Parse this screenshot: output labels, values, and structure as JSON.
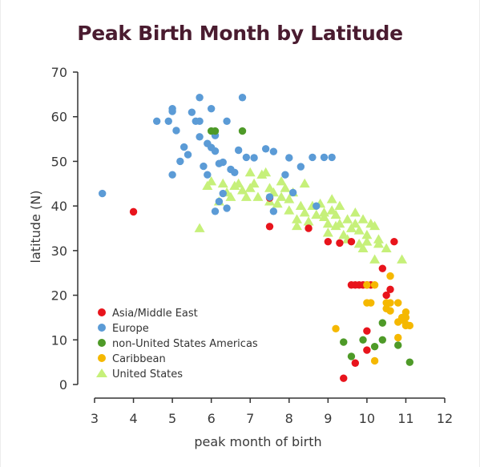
{
  "chart_data": {
    "type": "scatter",
    "title": "Peak Birth Month by Latitude",
    "xlabel": "peak month of birth",
    "ylabel": "latitude (N)",
    "xlim": [
      3,
      12
    ],
    "ylim": [
      0,
      70
    ],
    "xticks": [
      3,
      4,
      5,
      6,
      7,
      8,
      9,
      10,
      11,
      12
    ],
    "yticks": [
      0,
      10,
      20,
      30,
      40,
      50,
      60,
      70
    ],
    "legend_position": "bottom-left",
    "grid": false,
    "series": [
      {
        "name": "Asia/Middle East",
        "color": "#e8141c",
        "marker": "circle",
        "points": [
          [
            4.0,
            38.7
          ],
          [
            7.5,
            35.4
          ],
          [
            8.5,
            35.0
          ],
          [
            9.0,
            32.0
          ],
          [
            9.3,
            31.7
          ],
          [
            9.6,
            32.0
          ],
          [
            10.7,
            32.0
          ],
          [
            10.4,
            26.0
          ],
          [
            10.6,
            21.3
          ],
          [
            9.6,
            22.3
          ],
          [
            9.7,
            22.3
          ],
          [
            9.8,
            22.3
          ],
          [
            9.9,
            22.3
          ],
          [
            10.0,
            22.3
          ],
          [
            10.1,
            22.3
          ],
          [
            10.0,
            12.0
          ],
          [
            10.0,
            7.7
          ],
          [
            9.7,
            4.8
          ],
          [
            9.4,
            1.4
          ],
          [
            10.5,
            20.0
          ],
          [
            7.5,
            41.8
          ]
        ]
      },
      {
        "name": "Europe",
        "color": "#5b9bd6",
        "marker": "circle",
        "points": [
          [
            3.2,
            42.8
          ],
          [
            4.6,
            59.0
          ],
          [
            4.9,
            59.0
          ],
          [
            5.0,
            61.8
          ],
          [
            5.0,
            61.2
          ],
          [
            5.1,
            56.9
          ],
          [
            5.3,
            53.2
          ],
          [
            5.4,
            51.5
          ],
          [
            5.5,
            61.0
          ],
          [
            5.6,
            59.0
          ],
          [
            5.7,
            59.0
          ],
          [
            5.7,
            64.3
          ],
          [
            5.9,
            54.0
          ],
          [
            6.0,
            61.8
          ],
          [
            6.0,
            53.1
          ],
          [
            6.1,
            52.3
          ],
          [
            6.1,
            55.8
          ],
          [
            6.2,
            49.5
          ],
          [
            6.3,
            49.8
          ],
          [
            6.4,
            59.0
          ],
          [
            6.5,
            48.2
          ],
          [
            6.7,
            52.5
          ],
          [
            6.8,
            64.3
          ],
          [
            6.9,
            50.9
          ],
          [
            7.1,
            50.8
          ],
          [
            7.4,
            52.8
          ],
          [
            7.6,
            52.2
          ],
          [
            7.9,
            47.0
          ],
          [
            8.0,
            50.8
          ],
          [
            8.3,
            48.8
          ],
          [
            8.6,
            50.9
          ],
          [
            8.9,
            50.9
          ],
          [
            9.1,
            50.9
          ],
          [
            7.6,
            38.8
          ],
          [
            6.1,
            38.8
          ],
          [
            6.3,
            42.8
          ],
          [
            6.4,
            39.5
          ],
          [
            5.0,
            47.0
          ],
          [
            5.2,
            50.0
          ],
          [
            5.9,
            47.0
          ],
          [
            7.5,
            42.0
          ],
          [
            8.1,
            43.0
          ],
          [
            5.7,
            55.5
          ],
          [
            6.6,
            47.5
          ],
          [
            5.8,
            48.9
          ],
          [
            6.2,
            41.0
          ],
          [
            8.7,
            40.0
          ]
        ]
      },
      {
        "name": "non-United States Americas",
        "color": "#4e9a28",
        "marker": "circle",
        "points": [
          [
            6.1,
            56.8
          ],
          [
            6.0,
            56.8
          ],
          [
            6.8,
            56.8
          ],
          [
            10.4,
            13.8
          ],
          [
            9.4,
            9.5
          ],
          [
            9.9,
            10.0
          ],
          [
            10.4,
            10.0
          ],
          [
            10.2,
            8.5
          ],
          [
            9.6,
            6.3
          ],
          [
            10.8,
            8.8
          ],
          [
            11.1,
            5.0
          ]
        ]
      },
      {
        "name": "Caribbean",
        "color": "#f5b800",
        "marker": "circle",
        "points": [
          [
            10.6,
            24.3
          ],
          [
            10.0,
            22.3
          ],
          [
            10.2,
            22.3
          ],
          [
            10.0,
            18.3
          ],
          [
            10.1,
            18.3
          ],
          [
            10.5,
            18.3
          ],
          [
            10.6,
            18.3
          ],
          [
            10.8,
            18.3
          ],
          [
            10.5,
            17.0
          ],
          [
            10.6,
            16.5
          ],
          [
            11.0,
            16.2
          ],
          [
            10.9,
            15.0
          ],
          [
            11.0,
            15.0
          ],
          [
            10.8,
            14.0
          ],
          [
            11.0,
            13.5
          ],
          [
            11.1,
            13.2
          ],
          [
            11.0,
            13.2
          ],
          [
            10.8,
            10.5
          ],
          [
            9.2,
            12.5
          ],
          [
            10.2,
            5.3
          ],
          [
            10.9,
            14.5
          ]
        ]
      },
      {
        "name": "United States",
        "color": "#c6f07a",
        "marker": "triangle",
        "points": [
          [
            5.7,
            35.0
          ],
          [
            5.9,
            44.5
          ],
          [
            6.0,
            45.5
          ],
          [
            6.2,
            41.0
          ],
          [
            6.4,
            43.0
          ],
          [
            6.5,
            42.0
          ],
          [
            6.6,
            44.5
          ],
          [
            6.7,
            45.0
          ],
          [
            6.8,
            43.5
          ],
          [
            6.9,
            42.0
          ],
          [
            7.0,
            44.0
          ],
          [
            7.1,
            45.0
          ],
          [
            7.2,
            42.0
          ],
          [
            7.3,
            47.0
          ],
          [
            7.4,
            47.5
          ],
          [
            7.5,
            44.0
          ],
          [
            7.5,
            41.0
          ],
          [
            7.6,
            43.0
          ],
          [
            7.7,
            40.5
          ],
          [
            7.8,
            42.0
          ],
          [
            7.9,
            44.0
          ],
          [
            8.0,
            41.5
          ],
          [
            8.0,
            39.0
          ],
          [
            8.1,
            43.0
          ],
          [
            8.2,
            37.0
          ],
          [
            8.3,
            40.0
          ],
          [
            8.4,
            45.0
          ],
          [
            8.4,
            38.5
          ],
          [
            8.5,
            36.5
          ],
          [
            8.6,
            40.0
          ],
          [
            8.7,
            38.0
          ],
          [
            8.8,
            40.5
          ],
          [
            8.9,
            37.5
          ],
          [
            9.0,
            36.0
          ],
          [
            9.1,
            41.5
          ],
          [
            9.1,
            39.0
          ],
          [
            9.2,
            38.0
          ],
          [
            9.2,
            35.5
          ],
          [
            9.3,
            36.0
          ],
          [
            9.4,
            33.5
          ],
          [
            9.5,
            37.0
          ],
          [
            9.5,
            32.5
          ],
          [
            9.6,
            35.0
          ],
          [
            9.7,
            36.0
          ],
          [
            9.8,
            34.5
          ],
          [
            9.8,
            31.5
          ],
          [
            9.9,
            37.0
          ],
          [
            10.0,
            33.5
          ],
          [
            10.0,
            32.0
          ],
          [
            10.1,
            36.0
          ],
          [
            10.2,
            35.5
          ],
          [
            10.3,
            31.5
          ],
          [
            10.2,
            28.0
          ],
          [
            10.5,
            30.5
          ],
          [
            10.9,
            28.0
          ],
          [
            9.0,
            34.0
          ],
          [
            8.2,
            35.5
          ],
          [
            7.0,
            47.5
          ],
          [
            6.3,
            45.0
          ],
          [
            7.8,
            45.5
          ],
          [
            8.9,
            38.5
          ],
          [
            9.3,
            40.0
          ],
          [
            9.7,
            38.5
          ],
          [
            10.3,
            32.5
          ],
          [
            9.9,
            30.5
          ]
        ]
      }
    ]
  }
}
